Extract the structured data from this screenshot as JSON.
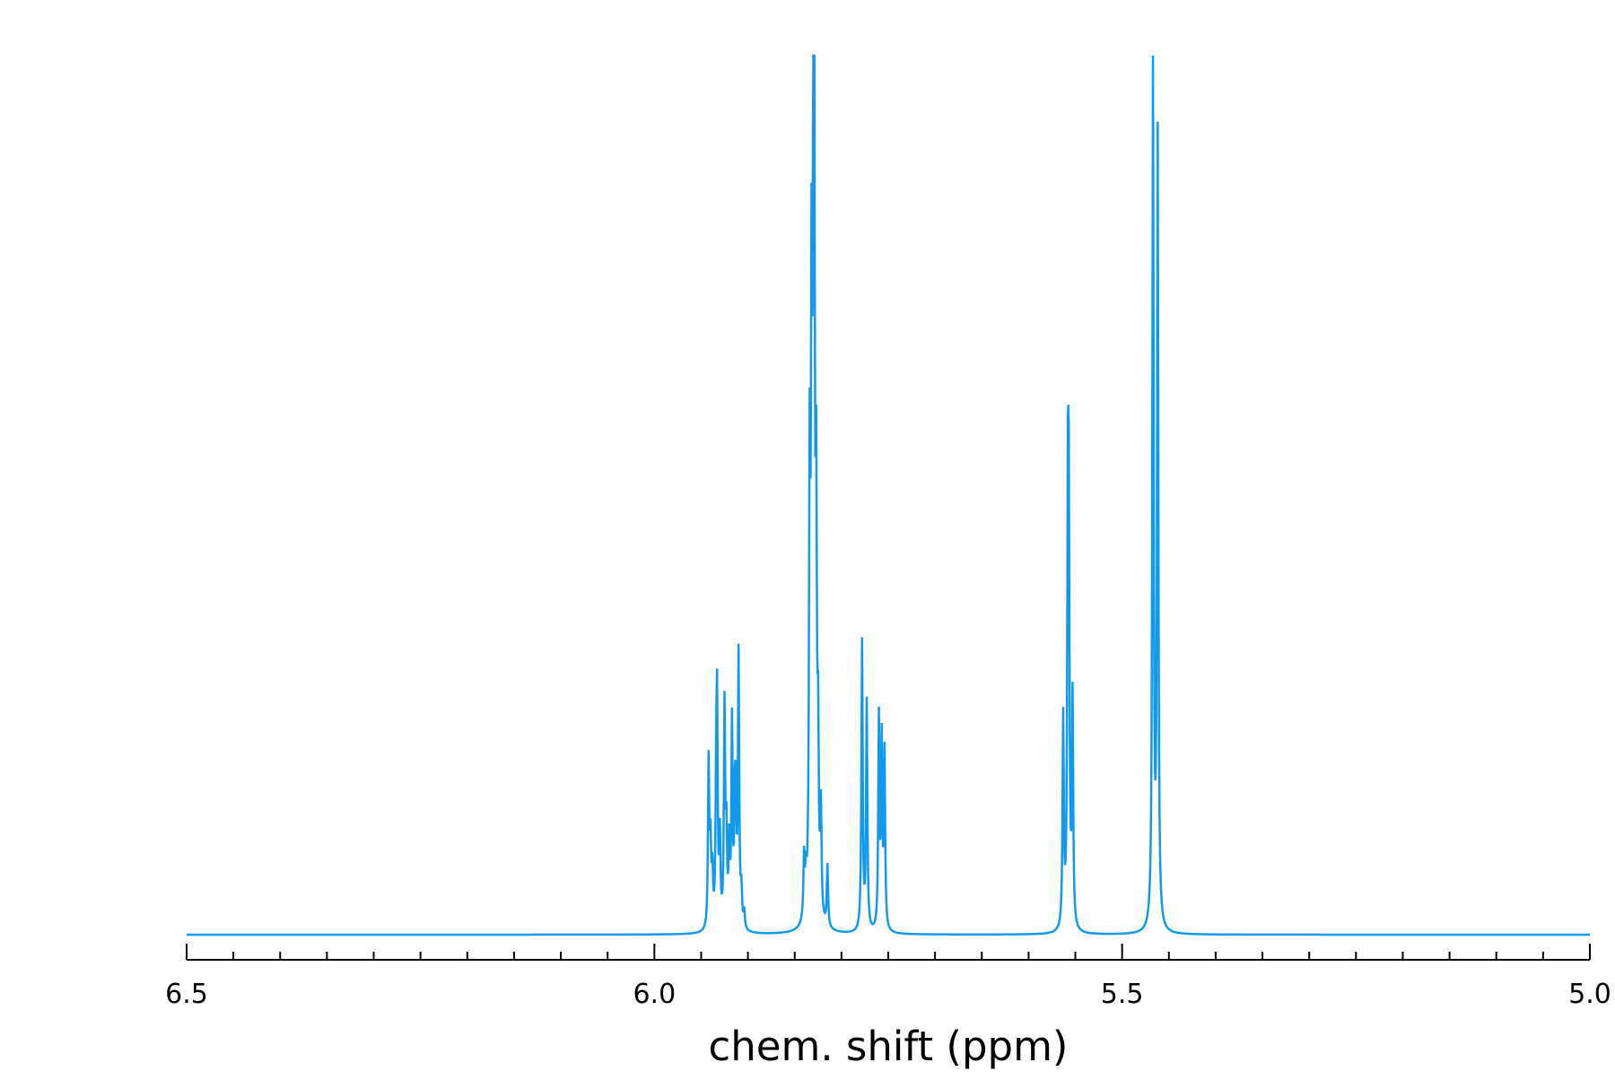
{
  "chart_data": {
    "type": "line",
    "title": "",
    "xlabel": "chem. shift (ppm)",
    "ylabel": "",
    "x_reversed": true,
    "xlim": [
      6.5,
      5.0
    ],
    "ylim": [
      0,
      1
    ],
    "grid": false,
    "legend": "none",
    "y_axis_visible": false,
    "colors": {
      "trace": "#1199ee",
      "axis": "#000000"
    },
    "x_major_ticks": [
      6.5,
      6.0,
      5.5,
      5.0
    ],
    "x_tick_labels": [
      "6.5",
      "6.0",
      "5.5",
      "5.0"
    ],
    "x_minor_step": 0.05,
    "linewidth_hz": 0.0008,
    "peaks": [
      {
        "x": 5.942,
        "y": 0.19
      },
      {
        "x": 5.94,
        "y": 0.09
      },
      {
        "x": 5.938,
        "y": 0.06
      },
      {
        "x": 5.934,
        "y": 0.12
      },
      {
        "x": 5.933,
        "y": 0.24
      },
      {
        "x": 5.93,
        "y": 0.1
      },
      {
        "x": 5.925,
        "y": 0.25
      },
      {
        "x": 5.923,
        "y": 0.1
      },
      {
        "x": 5.92,
        "y": 0.09
      },
      {
        "x": 5.917,
        "y": 0.23
      },
      {
        "x": 5.914,
        "y": 0.11
      },
      {
        "x": 5.913,
        "y": 0.12
      },
      {
        "x": 5.91,
        "y": 0.31
      },
      {
        "x": 5.907,
        "y": 0.04
      },
      {
        "x": 5.904,
        "y": 0.02
      },
      {
        "x": 5.84,
        "y": 0.07
      },
      {
        "x": 5.838,
        "y": 0.04
      },
      {
        "x": 5.834,
        "y": 0.48
      },
      {
        "x": 5.832,
        "y": 0.62
      },
      {
        "x": 5.83,
        "y": 0.85
      },
      {
        "x": 5.829,
        "y": 0.55
      },
      {
        "x": 5.827,
        "y": 0.42
      },
      {
        "x": 5.825,
        "y": 0.18
      },
      {
        "x": 5.822,
        "y": 0.12
      },
      {
        "x": 5.815,
        "y": 0.07
      },
      {
        "x": 5.778,
        "y": 0.33
      },
      {
        "x": 5.773,
        "y": 0.26
      },
      {
        "x": 5.76,
        "y": 0.24
      },
      {
        "x": 5.757,
        "y": 0.21
      },
      {
        "x": 5.754,
        "y": 0.2
      },
      {
        "x": 5.563,
        "y": 0.24
      },
      {
        "x": 5.558,
        "y": 0.42
      },
      {
        "x": 5.557,
        "y": 0.4
      },
      {
        "x": 5.553,
        "y": 0.26
      },
      {
        "x": 5.467,
        "y": 0.99
      },
      {
        "x": 5.462,
        "y": 0.9
      }
    ]
  }
}
